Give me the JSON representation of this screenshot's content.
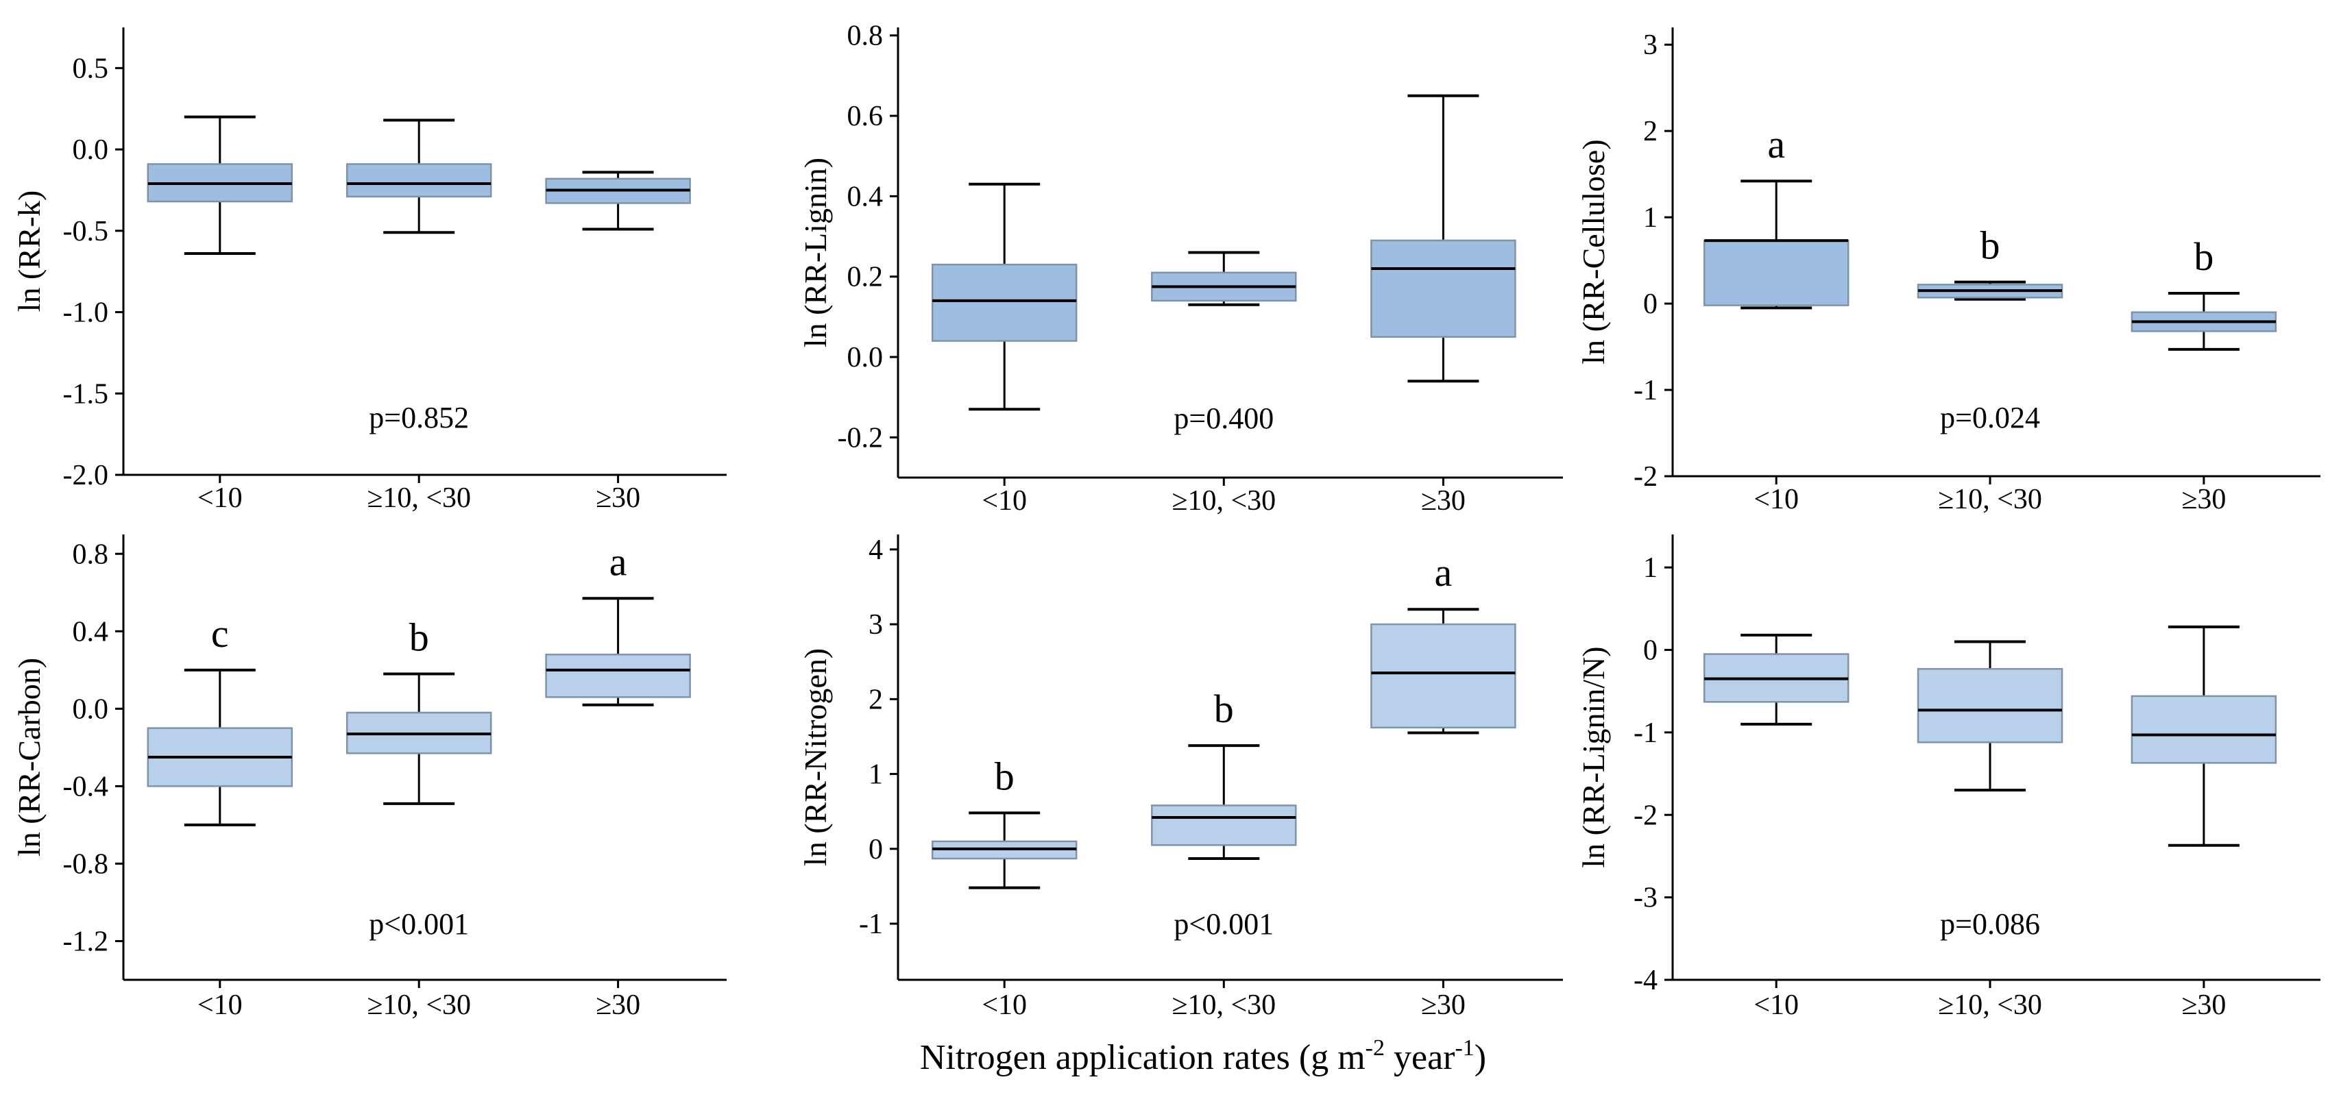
{
  "figure": {
    "x_axis_title": "Nitrogen application rates (g m",
    "x_axis_title_sup1": "-2",
    "x_axis_title_mid": " year",
    "x_axis_title_sup2": "-1",
    "x_axis_title_end": ")",
    "box_color": "#9dbde1",
    "box_color_light": "#b8d0ea",
    "box_edge_color": "#7f93a8"
  },
  "chart_data": [
    {
      "type": "box",
      "ylabel": "ln (RR-k)",
      "ylim": [
        -2.0,
        0.75
      ],
      "yticks": [
        0.5,
        0.0,
        -0.5,
        -1.0,
        -1.5,
        -2.0
      ],
      "ytick_labels": [
        "0.5",
        "0.0",
        "-0.5",
        "-1.0",
        "-1.5",
        "-2.0"
      ],
      "categories": [
        "<10",
        "≥10, <30",
        "≥30"
      ],
      "boxes": [
        {
          "whisker_low": -0.64,
          "q1": -0.32,
          "median": -0.21,
          "q3": -0.09,
          "whisker_high": 0.2
        },
        {
          "whisker_low": -0.51,
          "q1": -0.29,
          "median": -0.21,
          "q3": -0.09,
          "whisker_high": 0.18
        },
        {
          "whisker_low": -0.49,
          "q1": -0.33,
          "median": -0.25,
          "q3": -0.18,
          "whisker_high": -0.14
        }
      ],
      "letters": [
        "",
        "",
        ""
      ],
      "p_value": "p=0.852",
      "light": false
    },
    {
      "type": "box",
      "ylabel": "ln (RR-Lignin)",
      "ylim": [
        -0.3,
        0.82
      ],
      "yticks": [
        0.8,
        0.6,
        0.4,
        0.2,
        0.0,
        -0.2
      ],
      "ytick_labels": [
        "0.8",
        "0.6",
        "0.4",
        "0.2",
        "0.0",
        "-0.2"
      ],
      "categories": [
        "<10",
        "≥10, <30",
        "≥30"
      ],
      "boxes": [
        {
          "whisker_low": -0.13,
          "q1": 0.04,
          "median": 0.14,
          "q3": 0.23,
          "whisker_high": 0.43
        },
        {
          "whisker_low": 0.13,
          "q1": 0.14,
          "median": 0.175,
          "q3": 0.21,
          "whisker_high": 0.26
        },
        {
          "whisker_low": -0.06,
          "q1": 0.05,
          "median": 0.22,
          "q3": 0.29,
          "whisker_high": 0.65
        }
      ],
      "letters": [
        "",
        "",
        ""
      ],
      "p_value": "p=0.400",
      "light": false
    },
    {
      "type": "box",
      "ylabel": "ln (RR-Cellulose)",
      "ylim": [
        -2,
        3.2
      ],
      "yticks": [
        3,
        2,
        1,
        0,
        -1,
        -2
      ],
      "ytick_labels": [
        "3",
        "2",
        "1",
        "0",
        "-1",
        "-2"
      ],
      "categories": [
        "<10",
        "≥10, <30",
        "≥30"
      ],
      "boxes": [
        {
          "whisker_low": -0.05,
          "q1": -0.02,
          "median": 0.73,
          "q3": 0.73,
          "whisker_high": 1.42
        },
        {
          "whisker_low": 0.05,
          "q1": 0.07,
          "median": 0.15,
          "q3": 0.22,
          "whisker_high": 0.25
        },
        {
          "whisker_low": -0.53,
          "q1": -0.32,
          "median": -0.21,
          "q3": -0.1,
          "whisker_high": 0.12
        }
      ],
      "letters": [
        "a",
        "b",
        "b"
      ],
      "p_value": "p=0.024",
      "light": false
    },
    {
      "type": "box",
      "ylabel": "ln (RR-Carbon)",
      "ylim": [
        -1.4,
        0.9
      ],
      "yticks": [
        0.8,
        0.4,
        0.0,
        -0.4,
        -0.8,
        -1.2
      ],
      "ytick_labels": [
        "0.8",
        "0.4",
        "0.0",
        "-0.4",
        "-0.8",
        "-1.2"
      ],
      "categories": [
        "<10",
        "≥10, <30",
        "≥30"
      ],
      "boxes": [
        {
          "whisker_low": -0.6,
          "q1": -0.4,
          "median": -0.25,
          "q3": -0.1,
          "whisker_high": 0.2
        },
        {
          "whisker_low": -0.49,
          "q1": -0.23,
          "median": -0.13,
          "q3": -0.02,
          "whisker_high": 0.18
        },
        {
          "whisker_low": 0.02,
          "q1": 0.06,
          "median": 0.2,
          "q3": 0.28,
          "whisker_high": 0.57
        }
      ],
      "letters": [
        "c",
        "b",
        "a"
      ],
      "p_value": "p<0.001",
      "light": true
    },
    {
      "type": "box",
      "ylabel": "ln (RR-Nitrogen)",
      "ylim": [
        -1.75,
        4.2
      ],
      "yticks": [
        4,
        3,
        2,
        1,
        0,
        -1
      ],
      "ytick_labels": [
        "4",
        "3",
        "2",
        "1",
        "0",
        "-1"
      ],
      "categories": [
        "<10",
        "≥10, <30",
        "≥30"
      ],
      "boxes": [
        {
          "whisker_low": -0.52,
          "q1": -0.13,
          "median": 0.0,
          "q3": 0.1,
          "whisker_high": 0.48
        },
        {
          "whisker_low": -0.13,
          "q1": 0.05,
          "median": 0.42,
          "q3": 0.58,
          "whisker_high": 1.38
        },
        {
          "whisker_low": 1.55,
          "q1": 1.62,
          "median": 2.35,
          "q3": 3.0,
          "whisker_high": 3.2
        }
      ],
      "letters": [
        "b",
        "b",
        "a"
      ],
      "p_value": "p<0.001",
      "light": true
    },
    {
      "type": "box",
      "ylabel": "ln (RR-Lignin/N)",
      "ylim": [
        -4,
        1.4
      ],
      "yticks": [
        1,
        0,
        -1,
        -2,
        -3,
        -4
      ],
      "ytick_labels": [
        "1",
        "0",
        "-1",
        "-2",
        "-3",
        "-4"
      ],
      "categories": [
        "<10",
        "≥10, <30",
        "≥30"
      ],
      "boxes": [
        {
          "whisker_low": -0.9,
          "q1": -0.63,
          "median": -0.35,
          "q3": -0.05,
          "whisker_high": 0.18
        },
        {
          "whisker_low": -1.7,
          "q1": -1.12,
          "median": -0.73,
          "q3": -0.23,
          "whisker_high": 0.1
        },
        {
          "whisker_low": -2.37,
          "q1": -1.37,
          "median": -1.03,
          "q3": -0.56,
          "whisker_high": 0.28
        }
      ],
      "letters": [
        "",
        "",
        ""
      ],
      "p_value": "p=0.086",
      "light": true
    }
  ]
}
